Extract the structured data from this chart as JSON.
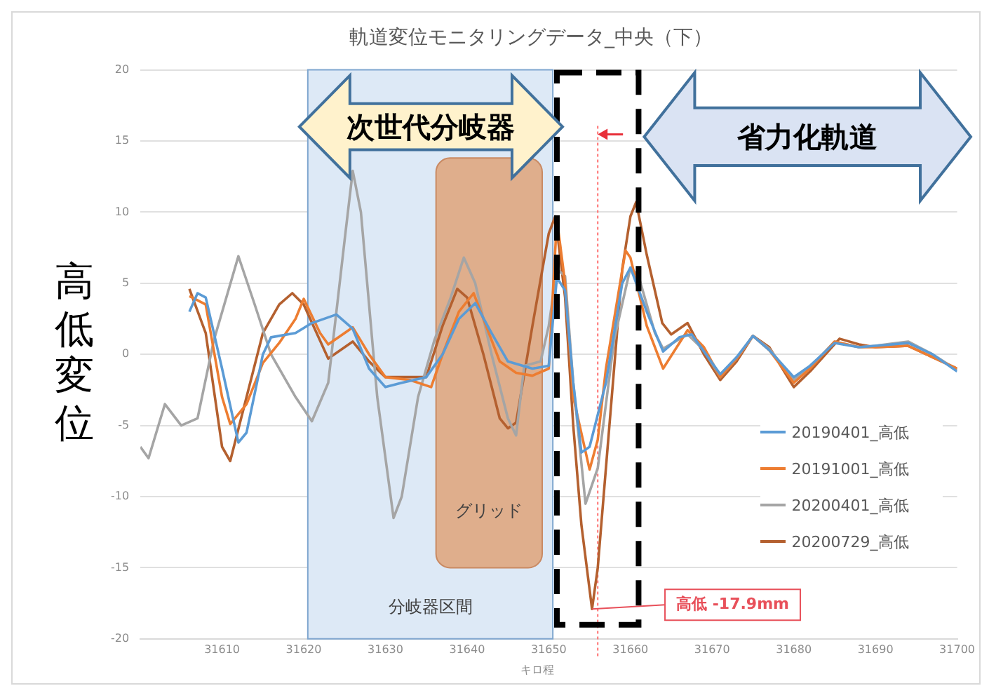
{
  "chart_data": {
    "type": "line",
    "title": "軌道変位モニタリングデータ_中央（下）",
    "xlabel": "キロ程",
    "ylabel": "高低変位",
    "xlim": [
      31600,
      31700
    ],
    "xticks": [
      31610,
      31620,
      31630,
      31640,
      31650,
      31660,
      31670,
      31680,
      31690,
      31700
    ],
    "ylim": [
      -20,
      20
    ],
    "yticks": [
      -20,
      -15,
      -10,
      -5,
      0,
      5,
      10,
      15,
      20
    ],
    "grid": "y",
    "legend": "bottom right",
    "marker": "none",
    "line_style": "solid",
    "bands": [
      {
        "axis": "x",
        "from": 31620.5,
        "to": 31650.5,
        "label": "分岐器区間",
        "color": "#dde9f6"
      },
      {
        "axis": "x",
        "from": 31636.2,
        "to": 31649.2,
        "label": "グリッド",
        "color": "#dfae8c"
      }
    ],
    "ref_lines": [
      {
        "axis": "x",
        "value": 31656,
        "color": "#ff7070",
        "line_style": "dotted"
      }
    ],
    "annotations": [
      "次世代分岐器",
      "省力化軌道",
      {
        "text": "高低 -17.9mm",
        "x": 31655.3,
        "y": -17.9
      }
    ],
    "series": [
      {
        "name": "20190401_高低",
        "color": "#5b9bd5",
        "x": [
          31606,
          31607,
          31608,
          31610,
          31612,
          31613,
          31615,
          31616,
          31619,
          31621,
          31624,
          31626,
          31628,
          31630,
          31632,
          31635,
          31637,
          31639,
          31641,
          31643,
          31645,
          31648,
          31650,
          31651,
          31652,
          31653,
          31654,
          31655,
          31657,
          31659,
          31660,
          31662,
          31664,
          31666,
          31667.5,
          31669,
          31671,
          31673,
          31675,
          31677,
          31680,
          31682,
          31685,
          31688,
          31690,
          31694,
          31697,
          31700
        ],
        "values": [
          3,
          4.3,
          4,
          -1,
          -6.2,
          -5.5,
          0,
          1.2,
          1.5,
          2.2,
          2.8,
          1.8,
          -1,
          -2.3,
          -2,
          -1.6,
          0,
          2.5,
          3.6,
          1.5,
          -0.5,
          -1,
          -0.8,
          5.4,
          4.5,
          -2,
          -6.9,
          -6.5,
          -2,
          5,
          6.1,
          3,
          0.2,
          1.2,
          1.4,
          0.2,
          -1.4,
          -0.2,
          1.3,
          0.3,
          -1.6,
          -0.8,
          0.8,
          0.5,
          0.6,
          0.8,
          0,
          -1.2
        ]
      },
      {
        "name": "20191001_高低",
        "color": "#ed7d31",
        "x": [
          31606,
          31608,
          31610,
          31611,
          31613,
          31615,
          31617,
          31619,
          31620,
          31622,
          31623,
          31626,
          31628,
          31630,
          31633,
          31635.6,
          31637,
          31639,
          31640.8,
          31642,
          31644,
          31646,
          31648,
          31650,
          31651,
          31652,
          31653,
          31655,
          31656,
          31657,
          31659.4,
          31660,
          31662,
          31664,
          31667,
          31669,
          31671,
          31673,
          31675,
          31677,
          31680,
          31682,
          31685,
          31688,
          31690,
          31694,
          31697,
          31700
        ],
        "values": [
          4.1,
          3.5,
          -3,
          -4.9,
          -3.5,
          -0.6,
          0.8,
          2.5,
          3.9,
          1.5,
          0.7,
          1.9,
          0,
          -1.6,
          -1.8,
          -2.3,
          0,
          3,
          4.3,
          2.5,
          -0.5,
          -1.3,
          -1.5,
          -1,
          9.5,
          5,
          -3,
          -8.1,
          -6,
          -1,
          7.3,
          6.8,
          2,
          -1,
          1.7,
          0.5,
          -1.6,
          -0.3,
          1.3,
          0.3,
          -2,
          -1,
          0.9,
          0.5,
          0.5,
          0.6,
          -0.2,
          -1
        ]
      },
      {
        "name": "20200401_高低",
        "color": "#a5a5a5",
        "x": [
          31600,
          31601,
          31603,
          31605,
          31607,
          31609,
          31612,
          31614,
          31616,
          31619,
          31621,
          31623,
          31625,
          31626,
          31627,
          31629,
          31631,
          31632,
          31634,
          31636,
          31638,
          31639.6,
          31641,
          31643,
          31645,
          31646,
          31647,
          31649,
          31650,
          31651,
          31652,
          31653,
          31654.5,
          31656,
          31658,
          31660,
          31661,
          31663,
          31664,
          31667,
          31669,
          31671,
          31673,
          31675,
          31677,
          31680,
          31682,
          31685,
          31688,
          31690,
          31694,
          31697,
          31700
        ],
        "values": [
          -6.5,
          -7.3,
          -3.5,
          -5,
          -4.5,
          1,
          6.9,
          3.5,
          0,
          -3,
          -4.7,
          -2,
          8,
          12.9,
          10,
          -3,
          -11.5,
          -10,
          -3,
          1,
          4,
          6.8,
          5,
          0,
          -4.5,
          -5.7,
          -0.8,
          -0.5,
          2,
          6,
          5.5,
          -2,
          -10.5,
          -8,
          1,
          6.1,
          5.5,
          1.5,
          0.4,
          1.4,
          0.3,
          -1.6,
          -0.3,
          1.3,
          0.4,
          -1.8,
          -0.9,
          0.9,
          0.5,
          0.6,
          0.9,
          0,
          -1.1
        ]
      },
      {
        "name": "20200729_高低",
        "color": "#b4602f",
        "x": [
          31606,
          31608,
          31610,
          31611,
          31613,
          31615,
          31617,
          31618.6,
          31620,
          31623,
          31626,
          31628,
          31630,
          31635,
          31637,
          31638.8,
          31640,
          31642,
          31644,
          31645,
          31646,
          31648,
          31650,
          31650.8,
          31652,
          31653,
          31654,
          31655.3,
          31656,
          31657,
          31658,
          31659,
          31660,
          31660.7,
          31662,
          31663.9,
          31665,
          31667,
          31669,
          31671,
          31673,
          31675,
          31677,
          31680,
          31682,
          31685.6,
          31688,
          31690,
          31694,
          31697,
          31700
        ],
        "values": [
          4.6,
          1.5,
          -6.5,
          -7.5,
          -3,
          1.5,
          3.5,
          4.3,
          3.5,
          -0.3,
          0.9,
          -0.5,
          -1.6,
          -1.6,
          2,
          4.6,
          4,
          0,
          -4.5,
          -5.2,
          -4.8,
          2,
          8.5,
          9.7,
          4,
          -5,
          -12,
          -17.9,
          -15,
          -8,
          -1,
          6,
          9.7,
          10.7,
          7,
          2.2,
          1.4,
          2.2,
          0,
          -1.8,
          -0.5,
          1.3,
          0.5,
          -2.3,
          -1.2,
          1.1,
          0.7,
          0.5,
          0.6,
          -0.2,
          -1
        ]
      }
    ]
  }
}
